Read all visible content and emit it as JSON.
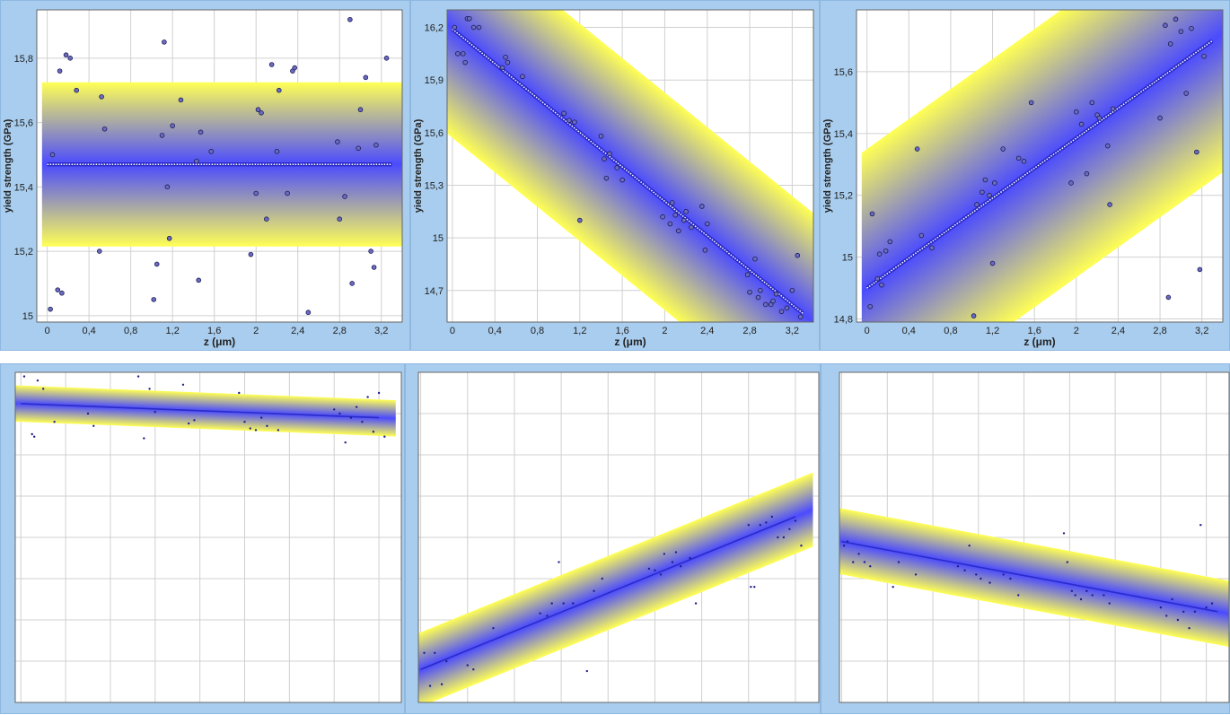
{
  "colors": {
    "panel_bg": "#a9cdee",
    "band_outer": "#ffff55",
    "band_inner": "#4b4bff",
    "fit_line": "#2b2bc8",
    "point": "#1f1f8a",
    "grid": "#d0d0d0"
  },
  "chart_data": [
    {
      "type": "scatter",
      "xlabel": "z (μm)",
      "ylabel": "yield strength (GPa)",
      "xlim": [
        -0.1,
        3.4
      ],
      "ylim": [
        14.98,
        15.95
      ],
      "xticks": [
        0,
        0.4,
        0.8,
        1.2,
        1.6,
        2,
        2.4,
        2.8,
        3.2
      ],
      "xtick_labels": [
        "0",
        "0,4",
        "0,8",
        "1,2",
        "1,6",
        "2",
        "2,4",
        "2,8",
        "3,2"
      ],
      "yticks": [
        15,
        15.2,
        15.4,
        15.6,
        15.8
      ],
      "ytick_labels": [
        "15",
        "15,2",
        "15,4",
        "15,6",
        "15,8"
      ],
      "fit": {
        "x": [
          0,
          3.3
        ],
        "y": [
          15.47,
          15.47
        ]
      },
      "band_halfwidth": 0.255,
      "points": {
        "x": [
          0.03,
          0.05,
          0.1,
          0.12,
          0.14,
          0.18,
          0.22,
          0.28,
          0.5,
          0.52,
          0.55,
          1.02,
          1.05,
          1.1,
          1.12,
          1.15,
          1.17,
          1.2,
          1.28,
          1.43,
          1.45,
          1.47,
          1.57,
          1.95,
          2,
          2.02,
          2.05,
          2.1,
          2.15,
          2.2,
          2.22,
          2.3,
          2.35,
          2.37,
          2.5,
          2.78,
          2.8,
          2.85,
          2.9,
          2.92,
          2.98,
          3,
          3.05,
          3.1,
          3.13,
          3.15,
          3.25
        ],
        "y": [
          15.02,
          15.5,
          15.08,
          15.76,
          15.07,
          15.81,
          15.8,
          15.7,
          15.2,
          15.68,
          15.58,
          15.05,
          15.16,
          15.56,
          15.85,
          15.4,
          15.24,
          15.59,
          15.67,
          15.48,
          15.11,
          15.57,
          15.51,
          15.19,
          15.38,
          15.64,
          15.63,
          15.3,
          15.78,
          15.51,
          15.7,
          15.38,
          15.76,
          15.77,
          15.01,
          15.54,
          15.3,
          15.37,
          15.92,
          15.1,
          15.52,
          15.64,
          15.74,
          15.2,
          15.15,
          15.53,
          15.8
        ]
      }
    },
    {
      "type": "scatter",
      "xlabel": "z (μm)",
      "ylabel": "yield strength (GPa)",
      "xlim": [
        -0.05,
        3.4
      ],
      "ylim": [
        14.52,
        16.3
      ],
      "xticks": [
        0,
        0.4,
        0.8,
        1.2,
        1.6,
        2,
        2.4,
        2.8,
        3.2
      ],
      "xtick_labels": [
        "0",
        "0,4",
        "0,8",
        "1,2",
        "1,6",
        "2",
        "2,4",
        "2,8",
        "3,2"
      ],
      "yticks": [
        14.7,
        15,
        15.3,
        15.6,
        15.9,
        16.2
      ],
      "ytick_labels": [
        "14,7",
        "15",
        "15,3",
        "15,6",
        "15,9",
        "16,2"
      ],
      "fit": {
        "x": [
          0,
          3.3
        ],
        "y": [
          16.19,
          14.57
        ]
      },
      "band_halfwidth": 0.62,
      "points": {
        "x": [
          0.02,
          0.05,
          0.1,
          0.12,
          0.14,
          0.16,
          0.2,
          0.25,
          0.47,
          0.5,
          0.52,
          0.66,
          1.05,
          1.1,
          1.15,
          1.2,
          1.4,
          1.43,
          1.45,
          1.48,
          1.55,
          1.6,
          1.98,
          2.05,
          2.07,
          2.1,
          2.13,
          2.18,
          2.2,
          2.25,
          2.35,
          2.38,
          2.4,
          2.78,
          2.8,
          2.85,
          2.88,
          2.9,
          2.95,
          3,
          3.02,
          3.05,
          3.1,
          3.15,
          3.2,
          3.25,
          3.28
        ],
        "y": [
          16.2,
          16.05,
          16.05,
          16.0,
          16.25,
          16.25,
          16.2,
          16.2,
          15.97,
          16.03,
          16.0,
          15.92,
          15.71,
          15.67,
          15.66,
          15.1,
          15.58,
          15.45,
          15.34,
          15.48,
          15.4,
          15.33,
          15.12,
          15.08,
          15.2,
          15.13,
          15.04,
          15.1,
          15.15,
          15.06,
          15.18,
          14.93,
          15.08,
          14.79,
          14.69,
          14.88,
          14.66,
          14.7,
          14.62,
          14.62,
          14.64,
          14.68,
          14.58,
          14.6,
          14.7,
          14.9,
          14.55
        ]
      }
    },
    {
      "type": "scatter",
      "xlabel": "z (μm)",
      "ylabel": "yield strength (GPa)",
      "xlim": [
        -0.1,
        3.4
      ],
      "ylim": [
        14.79,
        15.8
      ],
      "xticks": [
        0,
        0.4,
        0.8,
        1.2,
        1.6,
        2,
        2.4,
        2.8,
        3.2
      ],
      "xtick_labels": [
        "0",
        "0,4",
        "0,8",
        "1,2",
        "1,6",
        "2",
        "2,4",
        "2,8",
        "3,2"
      ],
      "yticks": [
        14.8,
        15,
        15.2,
        15.4,
        15.6
      ],
      "ytick_labels": [
        "14,8",
        "15",
        "15,2",
        "15,4",
        "15,6"
      ],
      "fit": {
        "x": [
          0,
          3.3
        ],
        "y": [
          14.9,
          15.7
        ]
      },
      "band_halfwidth": 0.45,
      "points": {
        "x": [
          0.03,
          0.05,
          0.1,
          0.12,
          0.14,
          0.18,
          0.22,
          0.48,
          0.52,
          0.62,
          1.02,
          1.05,
          1.1,
          1.13,
          1.17,
          1.2,
          1.22,
          1.3,
          1.45,
          1.5,
          1.57,
          1.95,
          2,
          2.05,
          2.1,
          2.15,
          2.2,
          2.22,
          2.3,
          2.32,
          2.35,
          2.8,
          2.85,
          2.88,
          2.9,
          2.95,
          3,
          3.05,
          3.1,
          3.15,
          3.18,
          3.22
        ],
        "y": [
          14.84,
          15.14,
          14.93,
          15.01,
          14.91,
          15.02,
          15.05,
          15.35,
          15.07,
          15.03,
          14.81,
          15.17,
          15.21,
          15.25,
          15.2,
          14.98,
          15.24,
          15.35,
          15.32,
          15.31,
          15.5,
          15.24,
          15.47,
          15.43,
          15.27,
          15.5,
          15.46,
          15.45,
          15.36,
          15.17,
          15.48,
          15.45,
          15.75,
          14.87,
          15.69,
          15.77,
          15.73,
          15.53,
          15.74,
          15.34,
          14.96,
          15.65
        ]
      }
    },
    {
      "type": "scatter",
      "xlim": [
        -0.05,
        3.4
      ],
      "ylim": [
        -400,
        0
      ],
      "xticks": [
        0,
        0.4,
        0.8,
        1.2,
        1.6,
        2,
        2.4,
        2.8,
        3.2
      ],
      "fit": {
        "x": [
          0,
          3.2
        ],
        "y": [
          -38,
          -55
        ]
      },
      "band_halfwidth": 22,
      "points": {
        "x": [
          0.03,
          0.1,
          0.12,
          0.15,
          0.2,
          0.3,
          0.6,
          0.65,
          1.05,
          1.1,
          1.15,
          1.2,
          1.45,
          1.5,
          1.55,
          1.95,
          2,
          2.05,
          2.1,
          2.15,
          2.2,
          2.3,
          2.8,
          2.85,
          2.9,
          2.95,
          3,
          3.05,
          3.1,
          3.15,
          3.2,
          3.25
        ],
        "y": [
          -5,
          -75,
          -78,
          -10,
          -20,
          -60,
          -50,
          -65,
          -5,
          -80,
          -20,
          -48,
          -15,
          -62,
          -58,
          -25,
          -60,
          -68,
          -70,
          -55,
          -65,
          -70,
          -45,
          -50,
          -85,
          -55,
          -42,
          -60,
          -30,
          -72,
          -25,
          -78
        ]
      }
    },
    {
      "type": "scatter",
      "xlim": [
        -0.02,
        3.4
      ],
      "ylim": [
        -4,
        0
      ],
      "xticks": [
        0,
        0.4,
        0.8,
        1.2,
        1.6,
        2,
        2.4,
        2.8,
        3.2
      ],
      "fit": {
        "x": [
          0,
          3.2
        ],
        "y": [
          -3.6,
          -1.75
        ]
      },
      "band_halfwidth": 0.45,
      "points": {
        "x": [
          0.03,
          0.08,
          0.12,
          0.18,
          0.22,
          0.4,
          0.45,
          0.62,
          1.02,
          1.08,
          1.12,
          1.18,
          1.22,
          1.3,
          1.42,
          1.48,
          1.55,
          1.95,
          2,
          2.05,
          2.08,
          2.15,
          2.18,
          2.22,
          2.3,
          2.35,
          2.8,
          2.82,
          2.85,
          2.9,
          2.95,
          3,
          3.05,
          3.1,
          3.15,
          3.2,
          3.25
        ],
        "y": [
          -3.4,
          -3.8,
          -3.4,
          -3.78,
          -3.5,
          -3.55,
          -3.6,
          -3.1,
          -2.92,
          -2.95,
          -2.8,
          -2.3,
          -2.8,
          -2.8,
          -3.62,
          -2.65,
          -2.5,
          -2.38,
          -2.4,
          -2.45,
          -2.2,
          -2.3,
          -2.18,
          -2.35,
          -2.25,
          -2.8,
          -1.85,
          -2.6,
          -2.6,
          -1.85,
          -1.82,
          -1.75,
          -2.0,
          -2.0,
          -1.9,
          -1.8,
          -2.1
        ]
      }
    },
    {
      "type": "scatter",
      "xlim": [
        -0.02,
        3.4
      ],
      "ylim": [
        -4,
        0
      ],
      "xticks": [
        0,
        0.4,
        0.8,
        1.2,
        1.6,
        2,
        2.4,
        2.8,
        3.2
      ],
      "fit": {
        "x": [
          0,
          3.3
        ],
        "y": [
          -2.05,
          -2.9
        ]
      },
      "band_halfwidth": 0.4,
      "points": {
        "x": [
          0.02,
          0.05,
          0.1,
          0.15,
          0.2,
          0.25,
          0.45,
          0.5,
          0.65,
          1.02,
          1.08,
          1.12,
          1.18,
          1.22,
          1.3,
          1.42,
          1.48,
          1.55,
          1.95,
          1.98,
          2.02,
          2.05,
          2.1,
          2.15,
          2.2,
          2.3,
          2.35,
          2.8,
          2.85,
          2.9,
          2.95,
          3,
          3.05,
          3.1,
          3.15,
          3.2,
          3.25
        ],
        "y": [
          -2.1,
          -2.05,
          -2.3,
          -2.2,
          -2.3,
          -2.35,
          -2.6,
          -2.3,
          -2.45,
          -2.35,
          -2.4,
          -2.1,
          -2.45,
          -2.5,
          -2.55,
          -2.45,
          -2.5,
          -2.7,
          -1.95,
          -2.3,
          -2.65,
          -2.7,
          -2.75,
          -2.65,
          -2.7,
          -2.7,
          -2.8,
          -2.85,
          -2.95,
          -2.75,
          -3.0,
          -2.9,
          -3.1,
          -2.9,
          -1.85,
          -2.85,
          -2.8
        ]
      }
    }
  ]
}
